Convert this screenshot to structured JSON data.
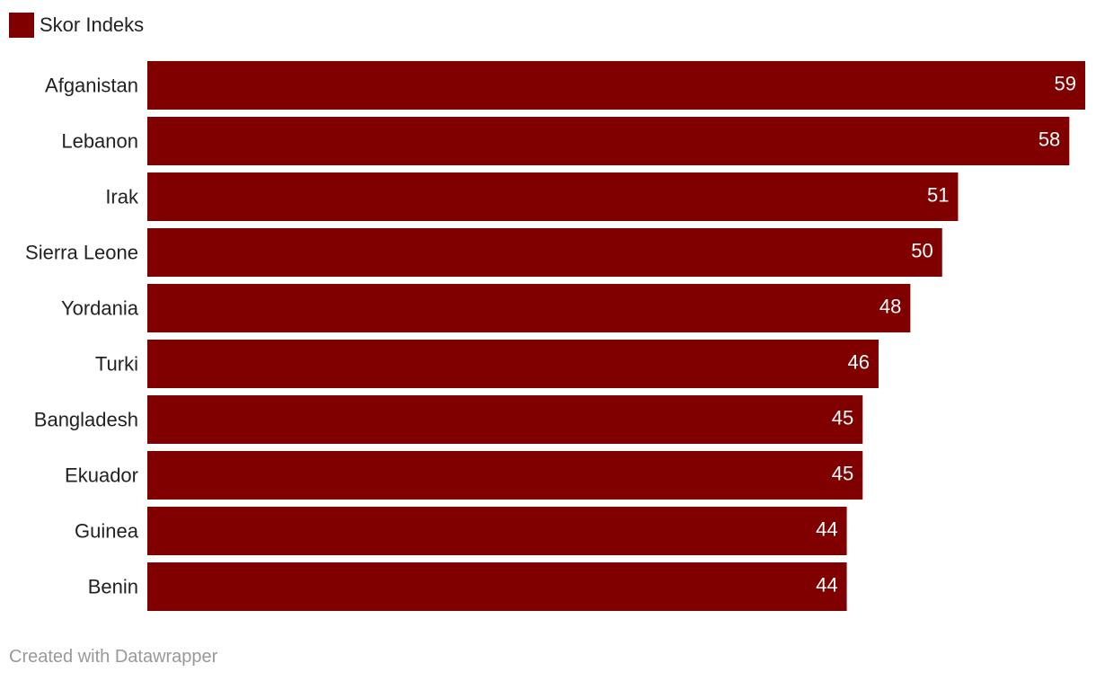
{
  "chart_data": {
    "type": "bar",
    "orientation": "horizontal",
    "categories": [
      "Afganistan",
      "Lebanon",
      "Irak",
      "Sierra Leone",
      "Yordania",
      "Turki",
      "Bangladesh",
      "Ekuador",
      "Guinea",
      "Benin"
    ],
    "series": [
      {
        "name": "Skor Indeks",
        "values": [
          59,
          58,
          51,
          50,
          48,
          46,
          45,
          45,
          44,
          44
        ],
        "color": "#800000"
      }
    ],
    "xlim": [
      0,
      59
    ],
    "legend": "top-left",
    "grid": false,
    "title": "",
    "xlabel": "",
    "ylabel": ""
  },
  "legend": {
    "label": "Skor Indeks",
    "color": "#800000"
  },
  "footer": {
    "credit": "Created with Datawrapper"
  }
}
